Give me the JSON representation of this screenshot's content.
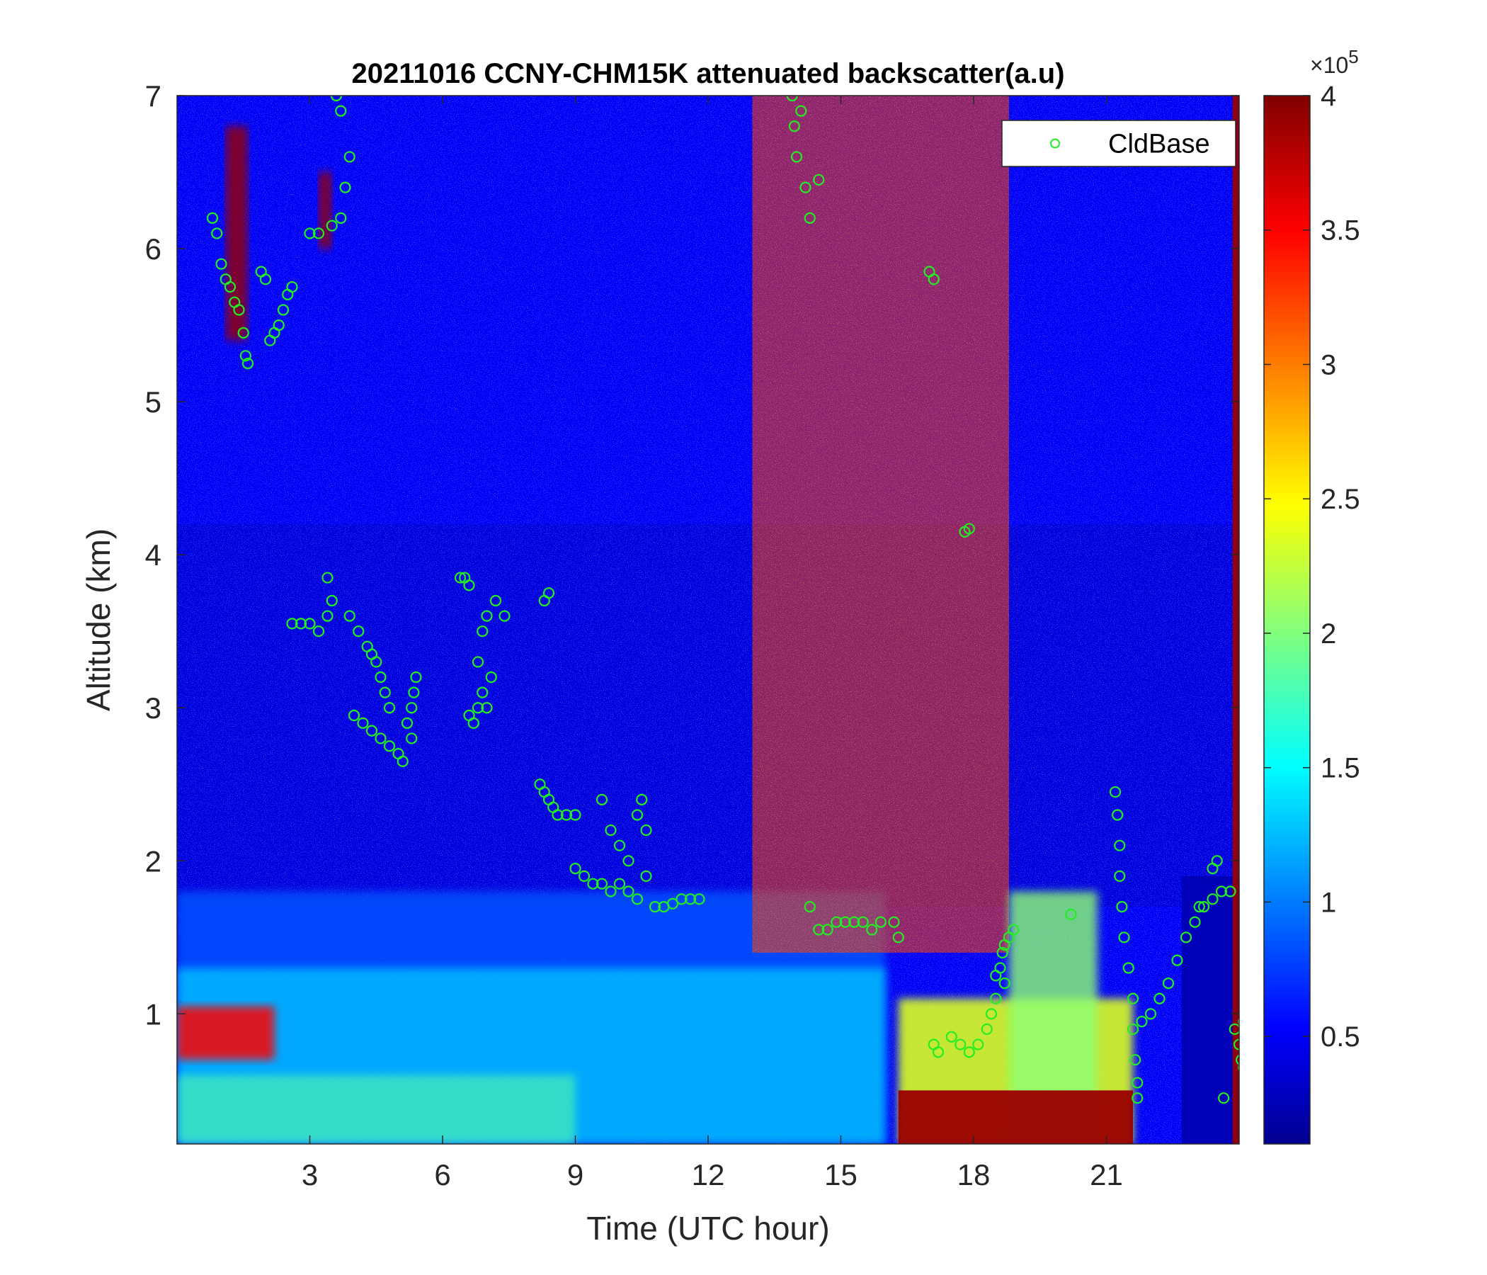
{
  "chart_data": {
    "type": "heatmap",
    "title": "20211016 CCNY-CHM15K attenuated backscatter(a.u)",
    "xlabel": "Time (UTC hour)",
    "ylabel": "Altitude (km)",
    "xlim": [
      0,
      24
    ],
    "ylim": [
      0.15,
      7
    ],
    "xticks": [
      3,
      6,
      9,
      12,
      15,
      18,
      21
    ],
    "yticks": [
      1,
      2,
      3,
      4,
      5,
      6,
      7
    ],
    "colorbar": {
      "colormap": "jet",
      "range": [
        0.1,
        4
      ],
      "ticks": [
        0.5,
        1,
        1.5,
        2,
        2.5,
        3,
        3.5,
        4
      ],
      "exponent_label": "×10",
      "exponent_power": "5"
    },
    "legend": {
      "position": "top-right",
      "entries": [
        {
          "name": "CldBase",
          "marker": "circle",
          "color": "#22ee22"
        }
      ]
    },
    "features": [
      {
        "kind": "surface_aerosol_layer",
        "t_start": 0,
        "t_end": 16,
        "top_km": 1.8,
        "value": 1.3
      },
      {
        "kind": "noise_high_region",
        "t_start": 13,
        "t_end": 18.8,
        "bottom_km": 1.4,
        "top_km": 7,
        "value": 3.3
      },
      {
        "kind": "boundary_layer_cloud",
        "t_start": 16.3,
        "t_end": 21.6,
        "top_km": 1.1,
        "value": 3.9
      },
      {
        "kind": "low_cloud",
        "t_start": 22.7,
        "t_end": 24,
        "top_km": 1.9,
        "value": 0.3
      }
    ],
    "series": [
      {
        "name": "CldBase",
        "points": [
          [
            0.8,
            6.2
          ],
          [
            0.9,
            6.1
          ],
          [
            1.0,
            5.9
          ],
          [
            1.1,
            5.8
          ],
          [
            1.2,
            5.75
          ],
          [
            1.3,
            5.65
          ],
          [
            1.4,
            5.6
          ],
          [
            1.5,
            5.45
          ],
          [
            1.55,
            5.3
          ],
          [
            1.6,
            5.25
          ],
          [
            1.9,
            5.85
          ],
          [
            2.0,
            5.8
          ],
          [
            2.1,
            5.4
          ],
          [
            2.2,
            5.45
          ],
          [
            2.3,
            5.5
          ],
          [
            2.4,
            5.6
          ],
          [
            2.5,
            5.7
          ],
          [
            2.6,
            5.75
          ],
          [
            3.0,
            6.1
          ],
          [
            3.2,
            6.1
          ],
          [
            3.5,
            6.15
          ],
          [
            3.7,
            6.2
          ],
          [
            3.8,
            6.4
          ],
          [
            3.9,
            6.6
          ],
          [
            3.6,
            7.0
          ],
          [
            3.7,
            6.9
          ],
          [
            2.6,
            3.55
          ],
          [
            2.8,
            3.55
          ],
          [
            3.0,
            3.55
          ],
          [
            3.2,
            3.5
          ],
          [
            3.4,
            3.6
          ],
          [
            3.5,
            3.7
          ],
          [
            3.4,
            3.85
          ],
          [
            3.9,
            3.6
          ],
          [
            4.1,
            3.5
          ],
          [
            4.3,
            3.4
          ],
          [
            4.4,
            3.35
          ],
          [
            4.5,
            3.3
          ],
          [
            4.6,
            3.2
          ],
          [
            4.7,
            3.1
          ],
          [
            4.8,
            3.0
          ],
          [
            4.0,
            2.95
          ],
          [
            4.2,
            2.9
          ],
          [
            4.4,
            2.85
          ],
          [
            4.6,
            2.8
          ],
          [
            4.8,
            2.75
          ],
          [
            5.0,
            2.7
          ],
          [
            5.1,
            2.65
          ],
          [
            5.2,
            2.9
          ],
          [
            5.3,
            3.0
          ],
          [
            5.35,
            3.1
          ],
          [
            5.4,
            3.2
          ],
          [
            5.3,
            2.8
          ],
          [
            6.5,
            3.85
          ],
          [
            6.6,
            3.8
          ],
          [
            6.4,
            3.85
          ],
          [
            6.8,
            3.3
          ],
          [
            6.9,
            3.5
          ],
          [
            7.0,
            3.6
          ],
          [
            7.2,
            3.7
          ],
          [
            7.4,
            3.6
          ],
          [
            6.7,
            2.9
          ],
          [
            6.8,
            3.0
          ],
          [
            6.9,
            3.1
          ],
          [
            7.0,
            3.0
          ],
          [
            6.6,
            2.95
          ],
          [
            7.1,
            3.2
          ],
          [
            8.3,
            3.7
          ],
          [
            8.4,
            3.75
          ],
          [
            8.2,
            2.5
          ],
          [
            8.3,
            2.45
          ],
          [
            8.4,
            2.4
          ],
          [
            8.5,
            2.35
          ],
          [
            8.6,
            2.3
          ],
          [
            8.8,
            2.3
          ],
          [
            9.0,
            2.3
          ],
          [
            9.0,
            1.95
          ],
          [
            9.2,
            1.9
          ],
          [
            9.4,
            1.85
          ],
          [
            9.6,
            1.85
          ],
          [
            9.8,
            1.8
          ],
          [
            10.0,
            1.85
          ],
          [
            10.2,
            1.8
          ],
          [
            10.4,
            1.75
          ],
          [
            10.6,
            1.9
          ],
          [
            9.8,
            2.2
          ],
          [
            10.0,
            2.1
          ],
          [
            10.2,
            2.0
          ],
          [
            10.4,
            2.3
          ],
          [
            10.5,
            2.4
          ],
          [
            9.6,
            2.4
          ],
          [
            10.6,
            2.2
          ],
          [
            10.8,
            1.7
          ],
          [
            11.0,
            1.7
          ],
          [
            11.2,
            1.72
          ],
          [
            11.4,
            1.75
          ],
          [
            11.6,
            1.75
          ],
          [
            11.8,
            1.75
          ],
          [
            13.9,
            7.0
          ],
          [
            13.95,
            6.8
          ],
          [
            14.0,
            6.6
          ],
          [
            14.2,
            6.4
          ],
          [
            14.3,
            6.2
          ],
          [
            14.5,
            6.45
          ],
          [
            14.1,
            6.9
          ],
          [
            14.5,
            1.55
          ],
          [
            14.7,
            1.55
          ],
          [
            14.9,
            1.6
          ],
          [
            15.1,
            1.6
          ],
          [
            15.3,
            1.6
          ],
          [
            15.5,
            1.6
          ],
          [
            15.7,
            1.55
          ],
          [
            15.9,
            1.6
          ],
          [
            14.3,
            1.7
          ],
          [
            16.2,
            1.6
          ],
          [
            16.3,
            1.5
          ],
          [
            17.0,
            5.85
          ],
          [
            17.1,
            5.8
          ],
          [
            17.8,
            4.15
          ],
          [
            17.9,
            4.17
          ],
          [
            17.1,
            0.8
          ],
          [
            17.2,
            0.75
          ],
          [
            17.5,
            0.85
          ],
          [
            17.7,
            0.8
          ],
          [
            17.9,
            0.75
          ],
          [
            18.1,
            0.8
          ],
          [
            18.3,
            0.9
          ],
          [
            18.4,
            1.0
          ],
          [
            18.5,
            1.1
          ],
          [
            18.6,
            1.3
          ],
          [
            18.65,
            1.4
          ],
          [
            18.7,
            1.45
          ],
          [
            18.8,
            1.5
          ],
          [
            18.9,
            1.55
          ],
          [
            18.7,
            1.2
          ],
          [
            18.5,
            1.25
          ],
          [
            20.2,
            1.65
          ],
          [
            21.2,
            2.45
          ],
          [
            21.25,
            2.3
          ],
          [
            21.3,
            2.1
          ],
          [
            21.3,
            1.9
          ],
          [
            21.35,
            1.7
          ],
          [
            21.4,
            1.5
          ],
          [
            21.5,
            1.3
          ],
          [
            21.6,
            1.1
          ],
          [
            21.6,
            0.9
          ],
          [
            21.65,
            0.7
          ],
          [
            21.7,
            0.55
          ],
          [
            21.7,
            0.45
          ],
          [
            21.8,
            0.95
          ],
          [
            22.0,
            1.0
          ],
          [
            22.2,
            1.1
          ],
          [
            22.4,
            1.2
          ],
          [
            22.6,
            1.35
          ],
          [
            22.8,
            1.5
          ],
          [
            23.0,
            1.6
          ],
          [
            23.2,
            1.7
          ],
          [
            23.4,
            1.75
          ],
          [
            23.6,
            1.8
          ],
          [
            23.8,
            1.8
          ],
          [
            23.4,
            1.95
          ],
          [
            23.5,
            2.0
          ],
          [
            23.1,
            1.7
          ],
          [
            23.65,
            0.45
          ],
          [
            23.9,
            0.9
          ],
          [
            24.0,
            0.8
          ],
          [
            24.05,
            0.7
          ],
          [
            24.1,
            0.65
          ],
          [
            24.1,
            0.95
          ]
        ]
      }
    ]
  }
}
